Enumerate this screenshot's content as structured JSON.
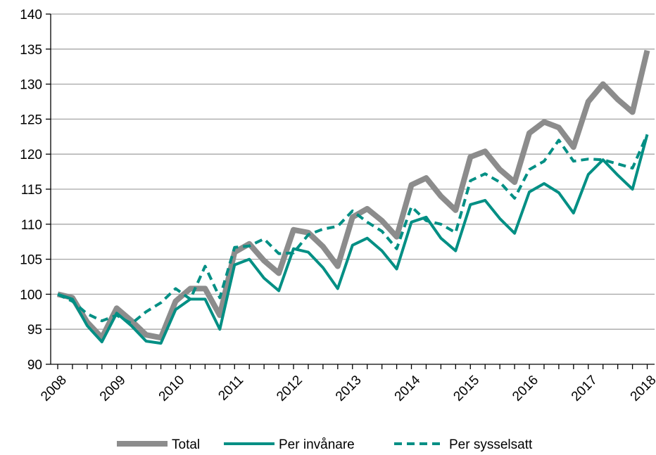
{
  "chart_data": {
    "type": "line",
    "title": "",
    "xlabel": "",
    "ylabel": "",
    "ylim": [
      90,
      140
    ],
    "yticks": [
      90,
      95,
      100,
      105,
      110,
      115,
      120,
      125,
      130,
      135,
      140
    ],
    "year_labels": [
      "2008",
      "2009",
      "2010",
      "2011",
      "2012",
      "2013",
      "2014",
      "2015",
      "2016",
      "2017",
      "2018"
    ],
    "quarters_per_year": 4,
    "grid": true,
    "legend_position": "bottom",
    "series": [
      {
        "name": "Total",
        "color": "#8c8c8c",
        "style": "solid-thick",
        "values": [
          100.0,
          99.5,
          96.0,
          93.8,
          98.0,
          96.2,
          94.2,
          93.8,
          99.0,
          100.8,
          100.8,
          97.0,
          106.0,
          107.2,
          104.8,
          103.0,
          109.2,
          108.8,
          106.8,
          104.0,
          111.0,
          112.2,
          110.5,
          108.2,
          115.6,
          116.6,
          114.0,
          112.0,
          119.6,
          120.4,
          117.8,
          116.0,
          123.0,
          124.6,
          123.8,
          121.0,
          127.5,
          130.0,
          127.8,
          126.0,
          134.8
        ]
      },
      {
        "name": "Per invånare",
        "color": "#008f84",
        "style": "solid",
        "values": [
          100.0,
          99.3,
          95.5,
          93.2,
          97.3,
          95.5,
          93.3,
          93.0,
          97.8,
          99.3,
          99.3,
          95.0,
          104.2,
          105.0,
          102.3,
          100.5,
          106.5,
          106.0,
          103.8,
          100.8,
          107.0,
          108.0,
          106.2,
          103.6,
          110.3,
          111.0,
          108.0,
          106.2,
          112.8,
          113.4,
          110.8,
          108.7,
          114.6,
          115.8,
          114.5,
          111.6,
          117.1,
          119.2,
          117.0,
          115.0,
          122.8
        ]
      },
      {
        "name": "Per sysselsatt",
        "color": "#008f84",
        "style": "dashed",
        "values": [
          100.0,
          99.0,
          97.2,
          96.2,
          97.0,
          95.8,
          97.5,
          98.8,
          100.8,
          99.3,
          104.0,
          99.5,
          106.7,
          106.9,
          107.9,
          105.8,
          105.9,
          108.5,
          109.3,
          109.7,
          111.9,
          110.3,
          109.0,
          106.5,
          112.5,
          110.5,
          110.0,
          108.8,
          116.2,
          117.2,
          116.0,
          113.7,
          117.8,
          119.0,
          122.0,
          119.0,
          119.3,
          119.2,
          118.6,
          118.0,
          122.8
        ]
      }
    ]
  }
}
